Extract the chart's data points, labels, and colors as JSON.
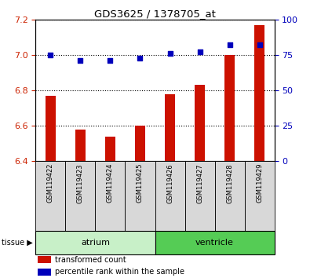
{
  "title": "GDS3625 / 1378705_at",
  "samples": [
    "GSM119422",
    "GSM119423",
    "GSM119424",
    "GSM119425",
    "GSM119426",
    "GSM119427",
    "GSM119428",
    "GSM119429"
  ],
  "transformed_counts": [
    6.77,
    6.58,
    6.54,
    6.6,
    6.78,
    6.83,
    7.0,
    7.17
  ],
  "percentile_ranks": [
    75,
    71,
    71,
    73,
    76,
    77,
    82,
    82
  ],
  "ylim_left": [
    6.4,
    7.2
  ],
  "ylim_right": [
    0,
    100
  ],
  "yticks_left": [
    6.4,
    6.6,
    6.8,
    7.0,
    7.2
  ],
  "yticks_right": [
    0,
    25,
    50,
    75,
    100
  ],
  "groups": [
    {
      "label": "atrium",
      "start": 0,
      "end": 4,
      "color": "#c8f0c8"
    },
    {
      "label": "ventricle",
      "start": 4,
      "end": 8,
      "color": "#55cc55"
    }
  ],
  "bar_color": "#cc1100",
  "dot_color": "#0000bb",
  "bar_width": 0.35,
  "tissue_label": "tissue",
  "legend_items": [
    {
      "label": "transformed count",
      "color": "#cc1100"
    },
    {
      "label": "percentile rank within the sample",
      "color": "#0000bb"
    }
  ],
  "ytick_left_color": "#cc2200",
  "ytick_right_color": "#0000bb",
  "sample_box_color": "#d8d8d8",
  "figsize": [
    3.95,
    3.54
  ],
  "dpi": 100
}
